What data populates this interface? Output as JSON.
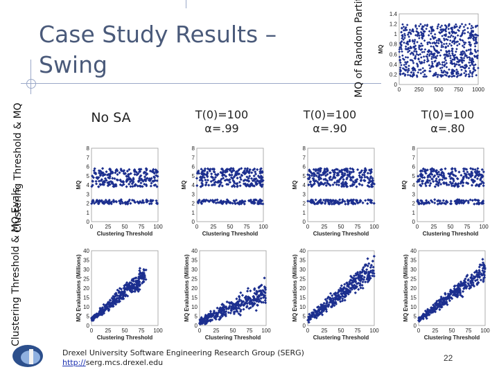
{
  "slide": {
    "title": "Case Study Results – Swing",
    "top_plot_label": "MQ of Random Partitions",
    "row1_label": "Clustering Threshold & MQ",
    "row2_label": "Clustering Threshold & MQ Evals.",
    "columns": [
      {
        "line1": "No SA",
        "line2": ""
      },
      {
        "line1": "T(0)=100",
        "line2": "α=.99"
      },
      {
        "line1": "T(0)=100",
        "line2": "α=.90"
      },
      {
        "line1": "T(0)=100",
        "line2": "α=.80"
      }
    ],
    "footer_line1": "Drexel University Software Engineering Research Group (SERG)",
    "footer_link_prefix": "http://",
    "footer_link_rest": "serg.mcs.drexel.edu",
    "page_number": "22"
  },
  "chart_data": [
    {
      "id": "random-partitions",
      "type": "scatter",
      "title": "",
      "xlabel": "",
      "ylabel": "MQ",
      "xlim": [
        0,
        1000
      ],
      "ylim": [
        0,
        1.4
      ],
      "xticks": [
        "0",
        "250",
        "500",
        "750",
        "1000"
      ],
      "yticks": [
        "0",
        "0.2",
        "0.4",
        "0.6",
        "0.8",
        "1",
        "1.2",
        "1.4"
      ],
      "series": [
        {
          "band": [
            0.15,
            1.2
          ],
          "count": 700
        }
      ]
    },
    {
      "id": "mq-no-sa",
      "type": "scatter",
      "xlabel": "Clustering Threshold",
      "ylabel": "MQ",
      "xlim": [
        0,
        100
      ],
      "ylim": [
        0,
        8
      ],
      "xticks": [
        "0",
        "25",
        "50",
        "75",
        "100"
      ],
      "yticks": [
        "0",
        "1",
        "2",
        "3",
        "4",
        "5",
        "6",
        "7",
        "8"
      ],
      "series": [
        {
          "band": [
            3.8,
            5.8
          ],
          "count": 220
        },
        {
          "band": [
            1.9,
            2.4
          ],
          "count": 90
        }
      ]
    },
    {
      "id": "mq-99",
      "type": "scatter",
      "xlabel": "Clustering Threshold",
      "ylabel": "MQ",
      "xlim": [
        0,
        100
      ],
      "ylim": [
        0,
        8
      ],
      "xticks": [
        "0",
        "25",
        "50",
        "75",
        "100"
      ],
      "yticks": [
        "0",
        "1",
        "2",
        "3",
        "4",
        "5",
        "6",
        "7",
        "8"
      ],
      "series": [
        {
          "band": [
            3.8,
            5.8
          ],
          "count": 240
        },
        {
          "band": [
            1.9,
            2.4
          ],
          "count": 100
        }
      ]
    },
    {
      "id": "mq-90",
      "type": "scatter",
      "xlabel": "Clustering Threshold",
      "ylabel": "MQ",
      "xlim": [
        0,
        100
      ],
      "ylim": [
        0,
        8
      ],
      "xticks": [
        "0",
        "25",
        "50",
        "75",
        "100"
      ],
      "yticks": [
        "0",
        "1",
        "2",
        "3",
        "4",
        "5",
        "6",
        "7",
        "8"
      ],
      "series": [
        {
          "band": [
            3.8,
            5.8
          ],
          "count": 240
        },
        {
          "band": [
            1.9,
            2.4
          ],
          "count": 100
        }
      ]
    },
    {
      "id": "mq-80",
      "type": "scatter",
      "xlabel": "Clustering Threshold",
      "ylabel": "MQ",
      "xlim": [
        0,
        100
      ],
      "ylim": [
        0,
        8
      ],
      "xticks": [
        "0",
        "25",
        "50",
        "75",
        "100"
      ],
      "yticks": [
        "0",
        "1",
        "2",
        "3",
        "4",
        "5",
        "6",
        "7",
        "8"
      ],
      "series": [
        {
          "band": [
            3.8,
            5.8
          ],
          "count": 220
        },
        {
          "band": [
            1.9,
            2.4
          ],
          "count": 90
        }
      ]
    },
    {
      "id": "evals-no-sa",
      "type": "scatter",
      "xlabel": "Clustering Threshold",
      "ylabel": "MQ Evaluations (Millions)",
      "xlim": [
        0,
        100
      ],
      "ylim": [
        0,
        40
      ],
      "xticks": [
        "0",
        "25",
        "50",
        "75",
        "100"
      ],
      "yticks": [
        "0",
        "5",
        "10",
        "15",
        "20",
        "25",
        "30",
        "35",
        "40"
      ],
      "xmax": 82,
      "trend": [
        [
          0,
          3
        ],
        [
          80,
          27
        ]
      ],
      "spread": 6,
      "count": 320
    },
    {
      "id": "evals-99",
      "type": "scatter",
      "xlabel": "Clustering Threshold",
      "ylabel": "MQ Evaluations (Millions)",
      "xlim": [
        0,
        100
      ],
      "ylim": [
        0,
        40
      ],
      "xticks": [
        "0",
        "25",
        "50",
        "75",
        "100"
      ],
      "yticks": [
        "0",
        "5",
        "10",
        "15",
        "20",
        "25",
        "30",
        "35",
        "40"
      ],
      "xmax": 100,
      "trend": [
        [
          0,
          2
        ],
        [
          100,
          18
        ]
      ],
      "spread": 7,
      "count": 340
    },
    {
      "id": "evals-90",
      "type": "scatter",
      "xlabel": "Clustering Threshold",
      "ylabel": "MQ Evaluations (Millions)",
      "xlim": [
        0,
        100
      ],
      "ylim": [
        0,
        40
      ],
      "xticks": [
        "0",
        "25",
        "50",
        "75",
        "100"
      ],
      "yticks": [
        "0",
        "5",
        "10",
        "15",
        "20",
        "25",
        "30",
        "35",
        "40"
      ],
      "xmax": 100,
      "trend": [
        [
          0,
          3
        ],
        [
          100,
          31
        ]
      ],
      "spread": 7,
      "count": 340
    },
    {
      "id": "evals-80",
      "type": "scatter",
      "xlabel": "Clustering Threshold",
      "ylabel": "MQ Evaluations (Millions)",
      "xlim": [
        0,
        100
      ],
      "ylim": [
        0,
        40
      ],
      "xticks": [
        "0",
        "25",
        "50",
        "75",
        "100"
      ],
      "yticks": [
        "0",
        "5",
        "10",
        "15",
        "20",
        "25",
        "30",
        "35",
        "40"
      ],
      "xmax": 100,
      "trend": [
        [
          0,
          3
        ],
        [
          100,
          30
        ]
      ],
      "spread": 6,
      "count": 340
    }
  ]
}
